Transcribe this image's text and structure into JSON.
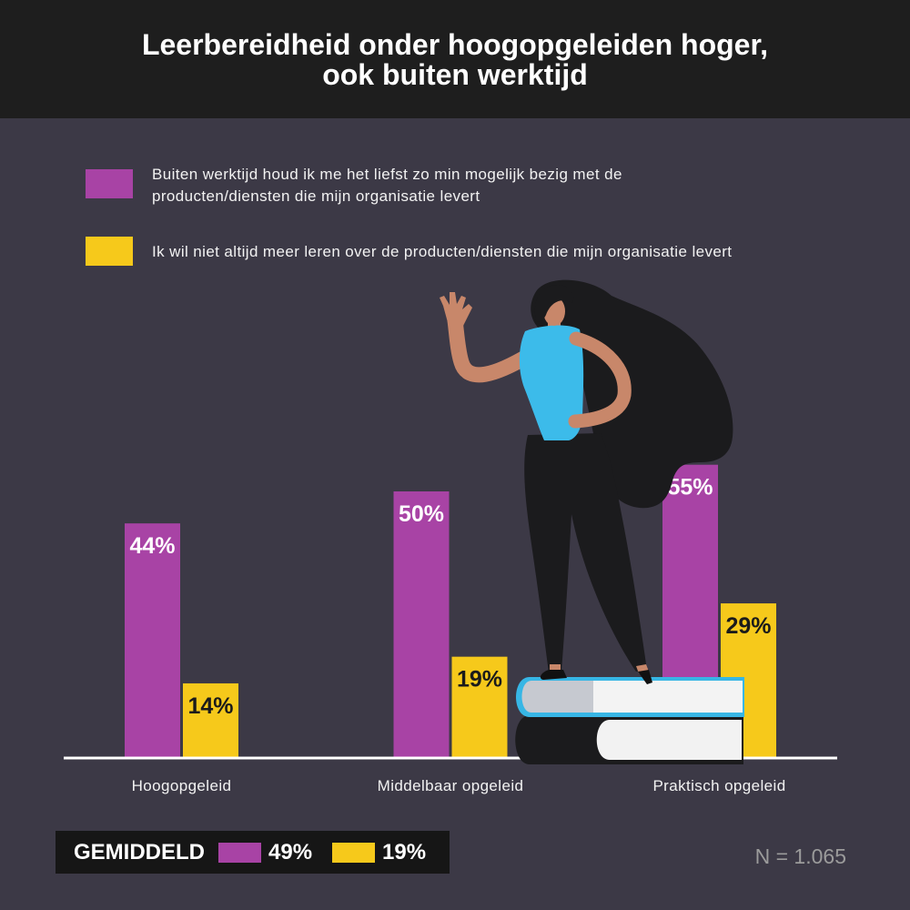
{
  "theme": {
    "page_background": "#3c3946",
    "header_background": "#1e1e1e",
    "summary_background": "#161616"
  },
  "chart_data": {
    "type": "bar",
    "title": "Leerbereidheid onder hoogopgeleiden hoger, ook buiten werktijd",
    "categories": [
      "Hoogopgeleid",
      "Middelbaar opgeleid",
      "Praktisch opgeleid"
    ],
    "series": [
      {
        "name": "Buiten werktijd houd ik me het liefst zo min mogelijk bezig met de producten/diensten die mijn organisatie levert",
        "color": "#a843a5",
        "label_color": "#ffffff",
        "values": [
          44,
          50,
          55
        ],
        "data_labels": [
          "44%",
          "50%",
          "55%"
        ]
      },
      {
        "name": "Ik wil niet altijd meer leren over de producten/diensten die mijn organisatie levert",
        "color": "#f6c91b",
        "label_color": "#1b1b1b",
        "values": [
          14,
          19,
          29
        ],
        "data_labels": [
          "14%",
          "19%",
          "29%"
        ]
      }
    ],
    "ylim": [
      0,
      100
    ],
    "grid": false,
    "legend_position": "top-left",
    "average": {
      "label": "GEMIDDELD",
      "values": [
        "49%",
        "19%"
      ]
    },
    "note": "N = 1.065"
  }
}
